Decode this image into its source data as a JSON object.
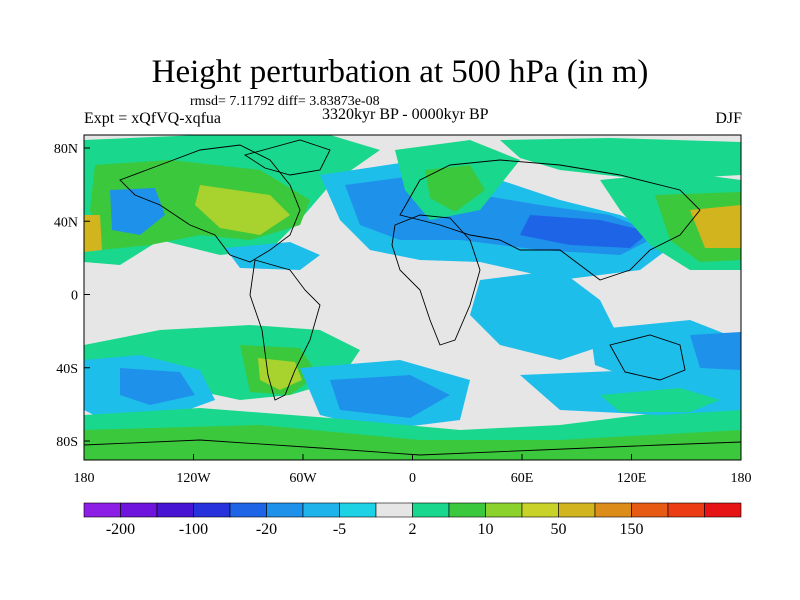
{
  "header": {
    "title": "Height perturbation at 500 hPa (in m)",
    "stats": "rmsd= 7.11792 diff= 3.83873e-08",
    "experiment": "Expt = xQfVQ-xqfua",
    "period": "3320kyr BP - 0000kyr BP",
    "season": "DJF"
  },
  "axes": {
    "lat_labels": [
      "80N",
      "40N",
      "0",
      "40S",
      "80S"
    ],
    "lon_labels": [
      "180",
      "120W",
      "60W",
      "0",
      "60E",
      "120E",
      "180"
    ]
  },
  "colorbar": {
    "colors": [
      "#8c1ee6",
      "#6e14dc",
      "#4614d2",
      "#2832dc",
      "#1e64e6",
      "#1e91eb",
      "#1eb4eb",
      "#1ed2e6",
      "#e6e6e6",
      "#19d78c",
      "#3cc83c",
      "#8cd22d",
      "#c8d228",
      "#d2b41e",
      "#dc8c19",
      "#e65a14",
      "#eb3c14",
      "#e61414"
    ],
    "labels": [
      "-200",
      "-100",
      "-20",
      "-5",
      "2",
      "10",
      "50",
      "150"
    ]
  },
  "field_colors": {
    "neutral": "#e6e6e6",
    "neg_light": "#1ebeeb",
    "neg_mid": "#1e91eb",
    "neg_strong": "#1e64e6",
    "pos_light": "#19d78c",
    "pos_mid": "#3cc83c",
    "pos_strong": "#a8d22d",
    "pos_max": "#d2b41e"
  }
}
